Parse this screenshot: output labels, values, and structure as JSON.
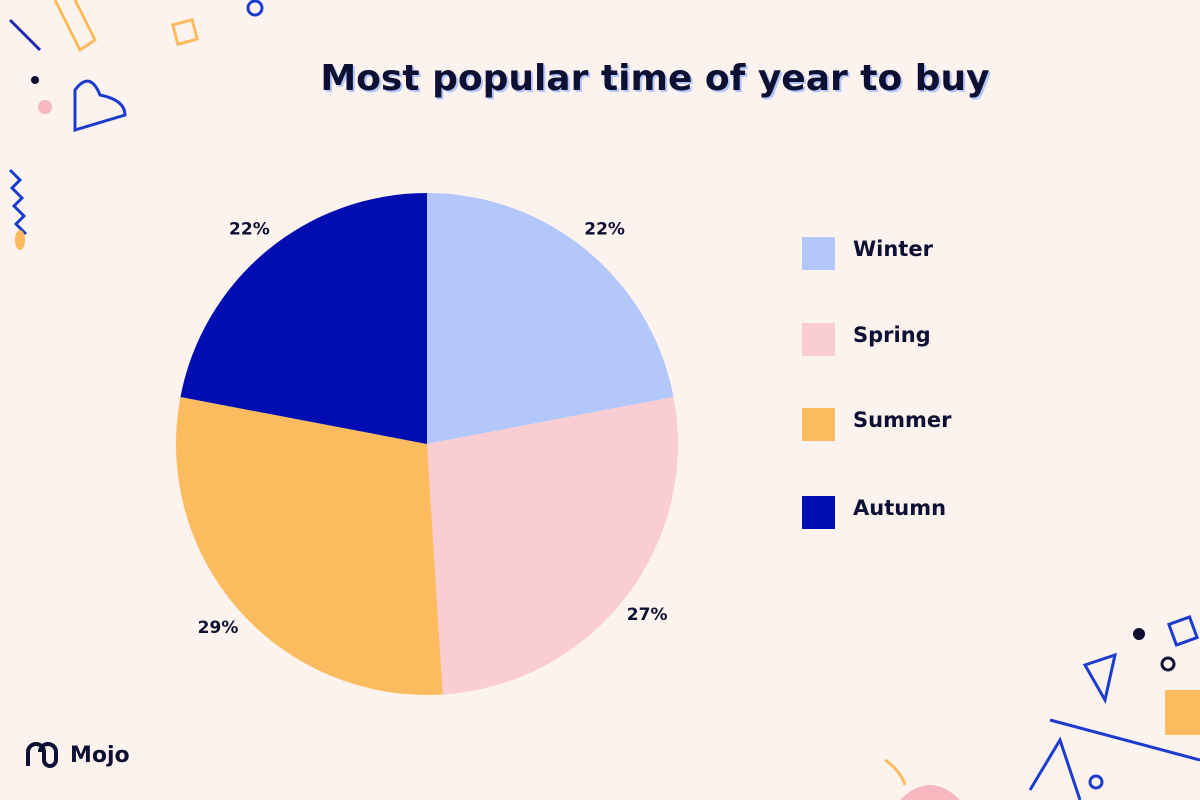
{
  "chart_data": {
    "type": "pie",
    "title": "Most popular time of year to buy",
    "categories": [
      "Winter",
      "Spring",
      "Summer",
      "Autumn"
    ],
    "values": [
      22,
      27,
      29,
      22
    ],
    "value_labels": [
      "22%",
      "27%",
      "29%",
      "22%"
    ],
    "colors": [
      "#b3c7fa",
      "#f9cdd1",
      "#fbbb5e",
      "#000db0"
    ],
    "legend": "right"
  },
  "brand": "Mojo"
}
